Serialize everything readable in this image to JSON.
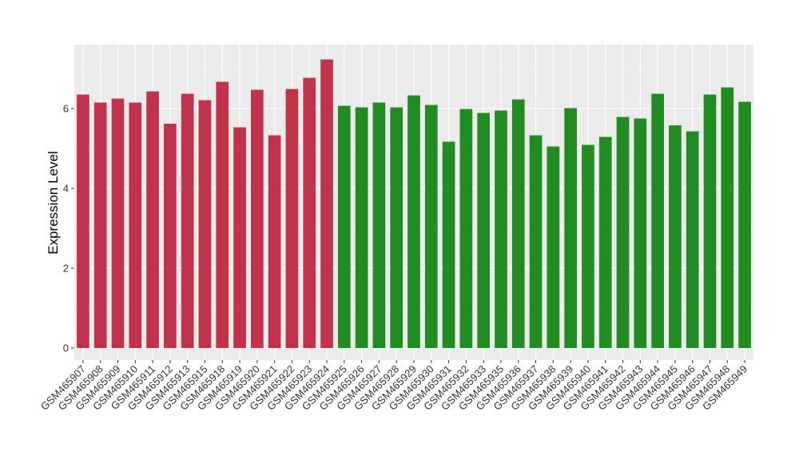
{
  "chart_data": {
    "type": "bar",
    "ylabel": "Expression Level",
    "xlabel": "",
    "ylim": [
      -0.3,
      7.6
    ],
    "yticks": [
      0,
      2,
      4,
      6
    ],
    "grid": true,
    "panel_background": "#ebebeb",
    "colors": {
      "group1": "#c0334a",
      "group2": "#228b22"
    },
    "categories": [
      "GSM465907",
      "GSM465908",
      "GSM465909",
      "GSM465910",
      "GSM465911",
      "GSM465912",
      "GSM465913",
      "GSM465915",
      "GSM465918",
      "GSM465919",
      "GSM465920",
      "GSM465921",
      "GSM465922",
      "GSM465923",
      "GSM465924",
      "GSM465925",
      "GSM465926",
      "GSM465927",
      "GSM465928",
      "GSM465929",
      "GSM465930",
      "GSM465931",
      "GSM465932",
      "GSM465933",
      "GSM465935",
      "GSM465936",
      "GSM465937",
      "GSM465938",
      "GSM465939",
      "GSM465940",
      "GSM465941",
      "GSM465942",
      "GSM465943",
      "GSM465944",
      "GSM465945",
      "GSM465946",
      "GSM465947",
      "GSM465948",
      "GSM465949"
    ],
    "values": [
      6.35,
      6.15,
      6.25,
      6.15,
      6.43,
      5.62,
      6.37,
      6.21,
      6.67,
      5.53,
      6.47,
      5.33,
      6.49,
      6.77,
      7.23,
      6.07,
      6.03,
      6.15,
      6.03,
      6.33,
      6.09,
      5.17,
      5.99,
      5.89,
      5.95,
      6.23,
      5.33,
      5.05,
      6.01,
      5.09,
      5.29,
      5.79,
      5.75,
      6.37,
      5.58,
      5.43,
      6.35,
      6.53,
      6.17
    ],
    "groups": [
      1,
      1,
      1,
      1,
      1,
      1,
      1,
      1,
      1,
      1,
      1,
      1,
      1,
      1,
      1,
      2,
      2,
      2,
      2,
      2,
      2,
      2,
      2,
      2,
      2,
      2,
      2,
      2,
      2,
      2,
      2,
      2,
      2,
      2,
      2,
      2,
      2,
      2,
      2
    ]
  }
}
